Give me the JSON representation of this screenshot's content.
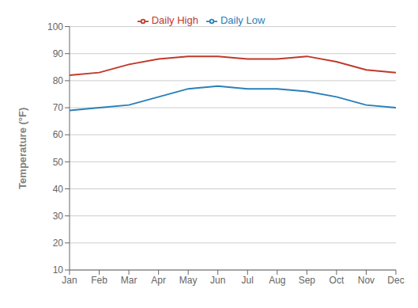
{
  "chart_data": {
    "type": "line",
    "categories": [
      "Jan",
      "Feb",
      "Mar",
      "Apr",
      "May",
      "Jun",
      "Jul",
      "Aug",
      "Sep",
      "Oct",
      "Nov",
      "Dec"
    ],
    "series": [
      {
        "name": "Daily High",
        "color": "#C0392B",
        "values": [
          82,
          83,
          86,
          88,
          89,
          89,
          88,
          88,
          89,
          87,
          84,
          83
        ]
      },
      {
        "name": "Daily Low",
        "color": "#2980B9",
        "values": [
          69,
          70,
          71,
          74,
          77,
          78,
          77,
          77,
          76,
          74,
          71,
          70
        ]
      }
    ],
    "ylabel": "Temperature (°F)",
    "ylim": [
      10,
      100
    ],
    "yticks": [
      10,
      20,
      30,
      40,
      50,
      60,
      70,
      80,
      90,
      100
    ],
    "grid": true,
    "legend": "top"
  }
}
